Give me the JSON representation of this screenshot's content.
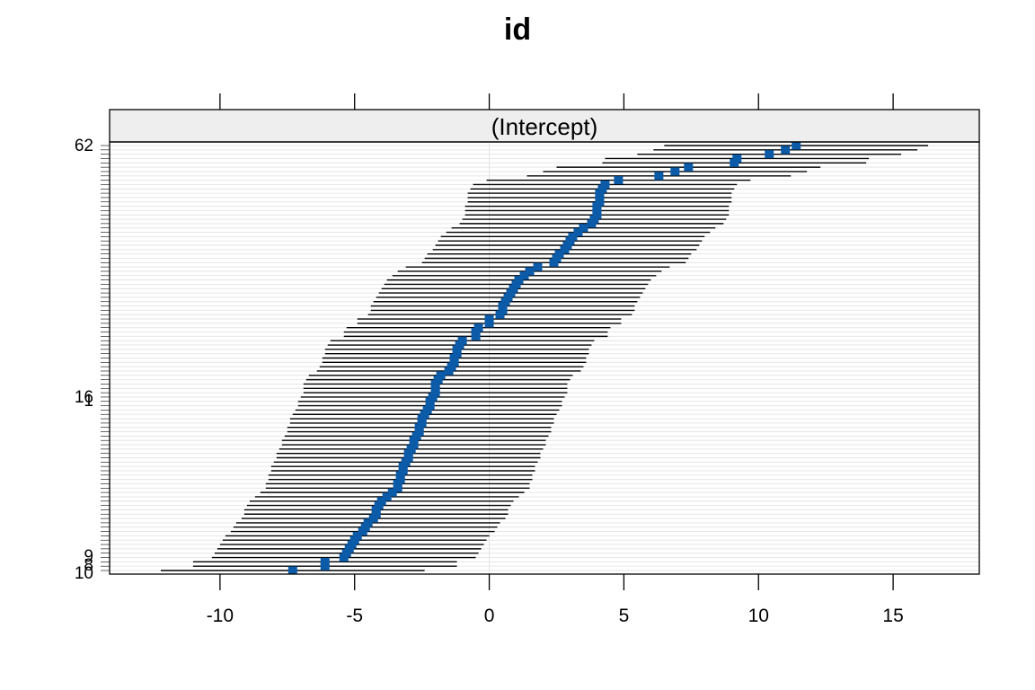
{
  "chart_data": {
    "type": "dotplot-interval",
    "title": "id",
    "panel_label": "(Intercept)",
    "xlabel": "",
    "ylabel": "",
    "xlim": [
      -14.1,
      18.2
    ],
    "x_ticks": [
      -10,
      -5,
      0,
      5,
      10,
      15
    ],
    "x_tick_labels": [
      "-10",
      "-5",
      "0",
      "5",
      "10",
      "15"
    ],
    "grid": true,
    "point_color": "#0C5BA8",
    "interval_color": "#000000",
    "gridline_color": "#E6E6E6",
    "strip_fill": "#EEEEEE",
    "visible_row_labels": [
      "62",
      "8",
      "1",
      "9",
      "16",
      "10"
    ],
    "interval_halfwidth": 4.9,
    "estimates": [
      -7.3,
      -6.1,
      -6.1,
      -5.4,
      -5.3,
      -5.2,
      -5.1,
      -5.0,
      -4.9,
      -4.7,
      -4.6,
      -4.5,
      -4.3,
      -4.2,
      -4.2,
      -4.1,
      -4.0,
      -3.8,
      -3.6,
      -3.4,
      -3.4,
      -3.3,
      -3.3,
      -3.2,
      -3.2,
      -3.1,
      -3.0,
      -3.0,
      -2.9,
      -2.8,
      -2.8,
      -2.7,
      -2.6,
      -2.6,
      -2.5,
      -2.5,
      -2.4,
      -2.3,
      -2.2,
      -2.2,
      -2.1,
      -2.0,
      -2.0,
      -2.0,
      -1.9,
      -1.8,
      -1.5,
      -1.4,
      -1.3,
      -1.3,
      -1.2,
      -1.2,
      -1.1,
      -1.0,
      -0.5,
      -0.5,
      -0.4,
      0.0,
      0.0,
      0.4,
      0.5,
      0.5,
      0.6,
      0.7,
      0.8,
      0.9,
      1.0,
      1.1,
      1.3,
      1.5,
      1.8,
      2.4,
      2.5,
      2.6,
      2.8,
      2.9,
      3.0,
      3.1,
      3.3,
      3.5,
      3.8,
      3.9,
      4.0,
      4.0,
      4.0,
      4.1,
      4.1,
      4.1,
      4.2,
      4.3,
      4.8,
      6.3,
      6.9,
      7.4,
      9.1,
      9.2,
      10.4,
      11.0,
      11.4
    ]
  }
}
